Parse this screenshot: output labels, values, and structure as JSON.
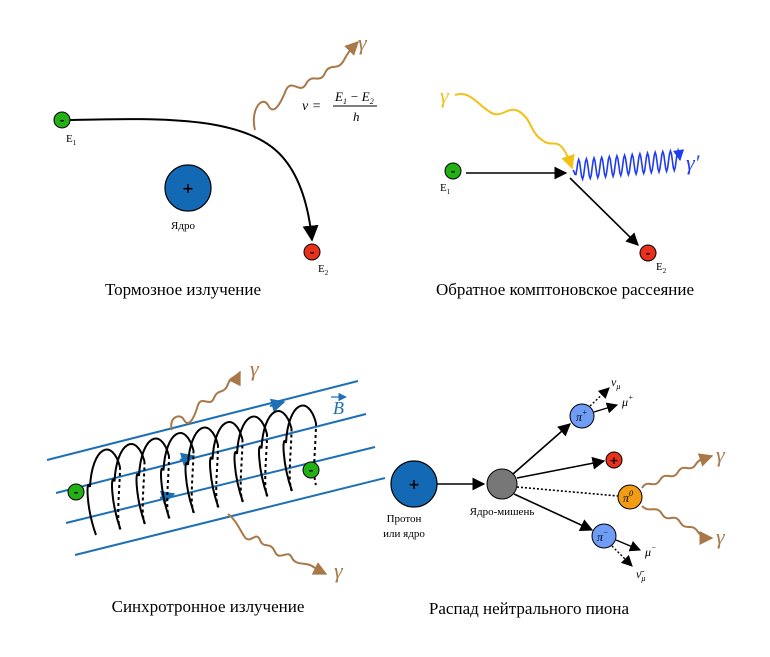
{
  "panels": {
    "bremsstrahlung": {
      "caption": "Тормозное излучение",
      "e1_label": "E",
      "e1_sub": "1",
      "e2_label": "E",
      "e2_sub": "2",
      "nucleus_label": "Ядро",
      "nucleus_sign": "+",
      "electron_sign": "-",
      "photon_label": "γ",
      "formula": {
        "lhs": "ν =",
        "numerator_a": "E",
        "numerator_a_sub": "1",
        "numerator_minus": "−",
        "numerator_b": "E",
        "numerator_b_sub": "2",
        "denominator": "h"
      }
    },
    "inverse_compton": {
      "caption": "Обратное комптоновское рассеяние",
      "incoming_photon_label": "γ",
      "outgoing_photon_label": "γ′",
      "e1_label": "E",
      "e1_sub": "1",
      "e2_label": "E",
      "e2_sub": "2",
      "electron_sign": "-"
    },
    "synchrotron": {
      "caption": "Синхротронное излучение",
      "field_label": "B",
      "photon_label_top": "γ",
      "photon_label_bottom": "γ",
      "electron_sign": "-"
    },
    "pion_decay": {
      "caption": "Распад нейтрального пиона",
      "proton_label_line1": "Протон",
      "proton_label_line2": "или ядро",
      "proton_sign": "+",
      "target_label": "Ядро-мишень",
      "pi_plus": "π",
      "pi_plus_sup": "+",
      "pi_zero": "π",
      "pi_zero_sup": "0",
      "pi_minus": "π",
      "pi_minus_sup": "−",
      "mu_plus": "μ",
      "mu_plus_sup": "+",
      "nu_mu": "ν",
      "nu_mu_sub": "μ",
      "mu_minus": "μ",
      "mu_minus_sup": "−",
      "nubar_mu": "ν̄",
      "nubar_mu_sub": "μ",
      "proton_product_sign": "+",
      "gamma_top": "γ",
      "gamma_bottom": "γ"
    }
  },
  "colors": {
    "electron": "#22b014",
    "electron_red": "#e8301c",
    "nucleus": "#1469b4",
    "target": "#777777",
    "pion_charged": "#6f9cf5",
    "pion_neutral": "#f29c16",
    "photon_brown": "#a87848",
    "photon_yellow": "#f2c118",
    "photon_blue": "#1f3cf0",
    "field_lines": "#1d6fb6"
  }
}
